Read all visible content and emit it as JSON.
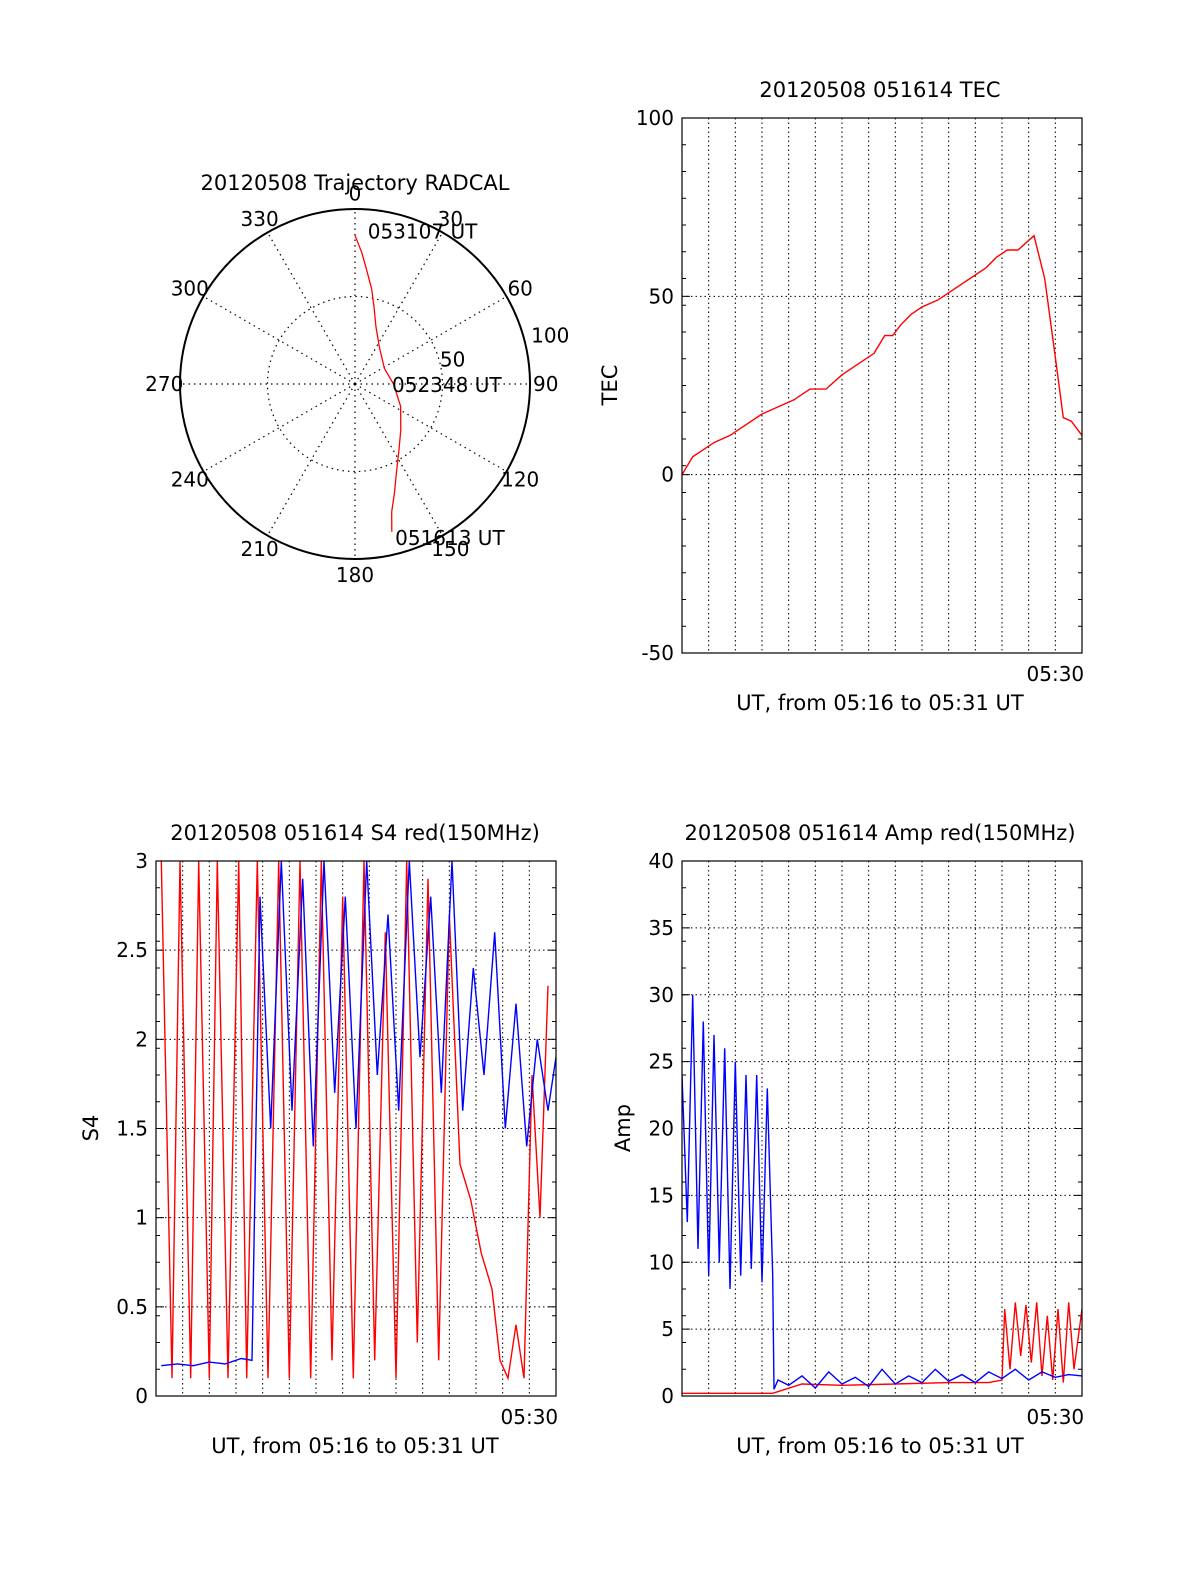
{
  "chart_data": [
    {
      "id": "trajectory",
      "type": "polar",
      "title": "20120508 Trajectory RADCAL",
      "radius_max": 100,
      "radial_ticks": [
        "50",
        "100"
      ],
      "radial_tick_values": [
        50,
        100
      ],
      "angle_ticks": [
        "0",
        "30",
        "60",
        "90",
        "120",
        "150",
        "180",
        "210",
        "240",
        "270",
        "300",
        "330"
      ],
      "angle_tick_values": [
        0,
        30,
        60,
        90,
        120,
        150,
        180,
        210,
        240,
        270,
        300,
        330
      ],
      "grid": true,
      "color": "#ff0000",
      "annotations": [
        {
          "text": "053107 UT",
          "azimuth": 4,
          "radius": 88
        },
        {
          "text": "052348 UT",
          "azimuth": 90,
          "radius": 20
        },
        {
          "text": "051613 UT",
          "azimuth": 166,
          "radius": 90
        }
      ],
      "series": [
        {
          "points": [
            [
              0,
              85
            ],
            [
              3,
              75
            ],
            [
              6,
              65
            ],
            [
              10,
              55
            ],
            [
              14,
              45
            ],
            [
              20,
              35
            ],
            [
              34,
              25
            ],
            [
              62,
              19
            ],
            [
              90,
              22
            ],
            [
              116,
              29
            ],
            [
              135,
              37
            ],
            [
              147,
              46
            ],
            [
              155,
              56
            ],
            [
              160,
              66
            ],
            [
              164,
              76
            ],
            [
              166,
              87
            ]
          ]
        }
      ]
    },
    {
      "id": "tec",
      "type": "line",
      "title": "20120508 051614 TEC",
      "ylabel": "TEC",
      "xlabel": "UT, from 05:16 to 05:31 UT",
      "xlim": [
        16.0,
        31.0
      ],
      "ylim": [
        -50,
        100
      ],
      "yticks": [
        "100",
        "50",
        "0",
        "-50"
      ],
      "ytick_values": [
        100,
        50,
        0,
        -50
      ],
      "xticks": [
        "05:30"
      ],
      "xtick_values": [
        30.0
      ],
      "grid": true,
      "series": [
        {
          "color": "#ff0000",
          "x": [
            16.0,
            16.4,
            16.8,
            17.2,
            17.8,
            18.4,
            19.0,
            19.6,
            20.2,
            20.8,
            21.4,
            22.0,
            22.6,
            23.2,
            23.6,
            23.9,
            24.2,
            24.6,
            25.0,
            25.6,
            26.2,
            26.8,
            27.4,
            27.8,
            28.2,
            28.6,
            28.9,
            29.2,
            29.6,
            30.0,
            30.3,
            30.6,
            31.0
          ],
          "y": [
            0,
            5,
            7,
            9,
            11,
            14,
            17,
            19,
            21,
            24,
            24,
            28,
            31,
            34,
            39,
            39,
            42,
            45,
            47,
            49,
            52,
            55,
            58,
            61,
            63,
            63,
            65,
            67,
            55,
            33,
            16,
            15,
            11
          ]
        }
      ]
    },
    {
      "id": "s4",
      "type": "line",
      "title": "20120508 051614 S4 red(150MHz)",
      "ylabel": "S4",
      "xlabel": "UT, from 05:16 to 05:31 UT",
      "xlim": [
        16.0,
        31.0
      ],
      "ylim": [
        0,
        3
      ],
      "yticks": [
        "3",
        "2.5",
        "2",
        "1.5",
        "1",
        "0.5",
        "0"
      ],
      "ytick_values": [
        3,
        2.5,
        2,
        1.5,
        1,
        0.5,
        0
      ],
      "xticks": [
        "05:30"
      ],
      "xtick_values": [
        30.0
      ],
      "grid": true,
      "series": [
        {
          "color": "#ff0000",
          "x": [
            16.2,
            16.6,
            16.9,
            17.3,
            17.6,
            18.0,
            18.3,
            18.7,
            19.1,
            19.4,
            19.8,
            20.2,
            20.6,
            21.0,
            21.4,
            21.8,
            22.2,
            22.6,
            23.0,
            23.4,
            23.8,
            24.2,
            24.6,
            25.0,
            25.4,
            25.8,
            26.2,
            26.6,
            27.0,
            27.4,
            27.8,
            28.2,
            28.6,
            28.9,
            29.2,
            29.5,
            29.8,
            30.1,
            30.4,
            30.7
          ],
          "y": [
            3.0,
            0.1,
            3.0,
            0.1,
            3.0,
            0.1,
            3.0,
            0.1,
            3.0,
            0.1,
            3.0,
            0.1,
            3.0,
            0.1,
            3.0,
            0.1,
            3.0,
            0.2,
            2.8,
            0.1,
            3.0,
            0.2,
            2.6,
            0.1,
            3.0,
            0.3,
            2.9,
            0.2,
            2.7,
            1.3,
            1.1,
            0.8,
            0.6,
            0.2,
            0.1,
            0.4,
            0.1,
            1.8,
            1.0,
            2.3
          ]
        },
        {
          "color": "#0000ff",
          "x": [
            16.2,
            16.8,
            17.4,
            18.0,
            18.6,
            19.2,
            19.6,
            19.9,
            20.3,
            20.7,
            21.1,
            21.5,
            21.9,
            22.3,
            22.7,
            23.1,
            23.5,
            23.9,
            24.3,
            24.7,
            25.1,
            25.5,
            25.9,
            26.3,
            26.7,
            27.1,
            27.5,
            27.9,
            28.3,
            28.7,
            29.1,
            29.5,
            29.9,
            30.3,
            30.7,
            31.0
          ],
          "y": [
            0.17,
            0.18,
            0.17,
            0.19,
            0.18,
            0.21,
            0.2,
            2.8,
            1.5,
            3.0,
            1.6,
            2.9,
            1.4,
            3.0,
            1.7,
            2.8,
            1.5,
            3.0,
            1.8,
            2.7,
            1.6,
            3.0,
            1.9,
            2.8,
            1.7,
            3.0,
            1.6,
            2.4,
            1.8,
            2.6,
            1.5,
            2.2,
            1.4,
            2.0,
            1.6,
            1.9
          ]
        }
      ]
    },
    {
      "id": "amp",
      "type": "line",
      "title": "20120508 051614 Amp red(150MHz)",
      "ylabel": "Amp",
      "xlabel": "UT, from 05:16 to 05:31 UT",
      "xlim": [
        16.0,
        31.0
      ],
      "ylim": [
        0,
        40
      ],
      "yticks": [
        "40",
        "35",
        "30",
        "25",
        "20",
        "15",
        "10",
        "5",
        "0"
      ],
      "ytick_values": [
        40,
        35,
        30,
        25,
        20,
        15,
        10,
        5,
        0
      ],
      "xticks": [
        "05:30"
      ],
      "xtick_values": [
        30.0
      ],
      "grid": true,
      "series": [
        {
          "color": "#ff0000",
          "x": [
            16.0,
            17.5,
            19.0,
            19.4,
            20.5,
            22.0,
            24.0,
            26.0,
            27.5,
            28.0,
            28.1,
            28.3,
            28.5,
            28.7,
            28.9,
            29.1,
            29.3,
            29.5,
            29.7,
            29.9,
            30.1,
            30.3,
            30.5,
            30.7,
            31.0
          ],
          "y": [
            0.2,
            0.2,
            0.2,
            0.2,
            0.9,
            0.8,
            0.9,
            1.0,
            1.0,
            1.2,
            6.5,
            2.0,
            7.0,
            3.0,
            6.8,
            2.5,
            7.0,
            1.5,
            6.0,
            1.2,
            6.5,
            1.0,
            7.0,
            2.0,
            6.5
          ]
        },
        {
          "color": "#0000ff",
          "x": [
            16.0,
            16.2,
            16.4,
            16.6,
            16.8,
            17.0,
            17.2,
            17.4,
            17.6,
            17.8,
            18.0,
            18.2,
            18.4,
            18.6,
            18.8,
            19.0,
            19.2,
            19.4,
            19.45,
            19.6,
            20.0,
            20.5,
            21.0,
            21.5,
            22.0,
            22.5,
            23.0,
            23.5,
            24.0,
            24.5,
            25.0,
            25.5,
            26.0,
            26.5,
            27.0,
            27.5,
            28.0,
            28.5,
            29.0,
            29.5,
            30.0,
            30.5,
            31.0
          ],
          "y": [
            24.0,
            13.0,
            30.0,
            11.0,
            28.0,
            9.0,
            27.0,
            10.0,
            26.0,
            8.0,
            25.0,
            9.0,
            24.0,
            9.5,
            24.0,
            8.5,
            23.0,
            9.0,
            0.5,
            1.2,
            0.8,
            1.5,
            0.6,
            1.8,
            0.9,
            1.4,
            0.7,
            2.0,
            0.9,
            1.5,
            1.0,
            2.0,
            1.1,
            1.6,
            1.0,
            1.8,
            1.3,
            2.0,
            1.2,
            1.8,
            1.4,
            1.6,
            1.5
          ]
        }
      ]
    }
  ]
}
